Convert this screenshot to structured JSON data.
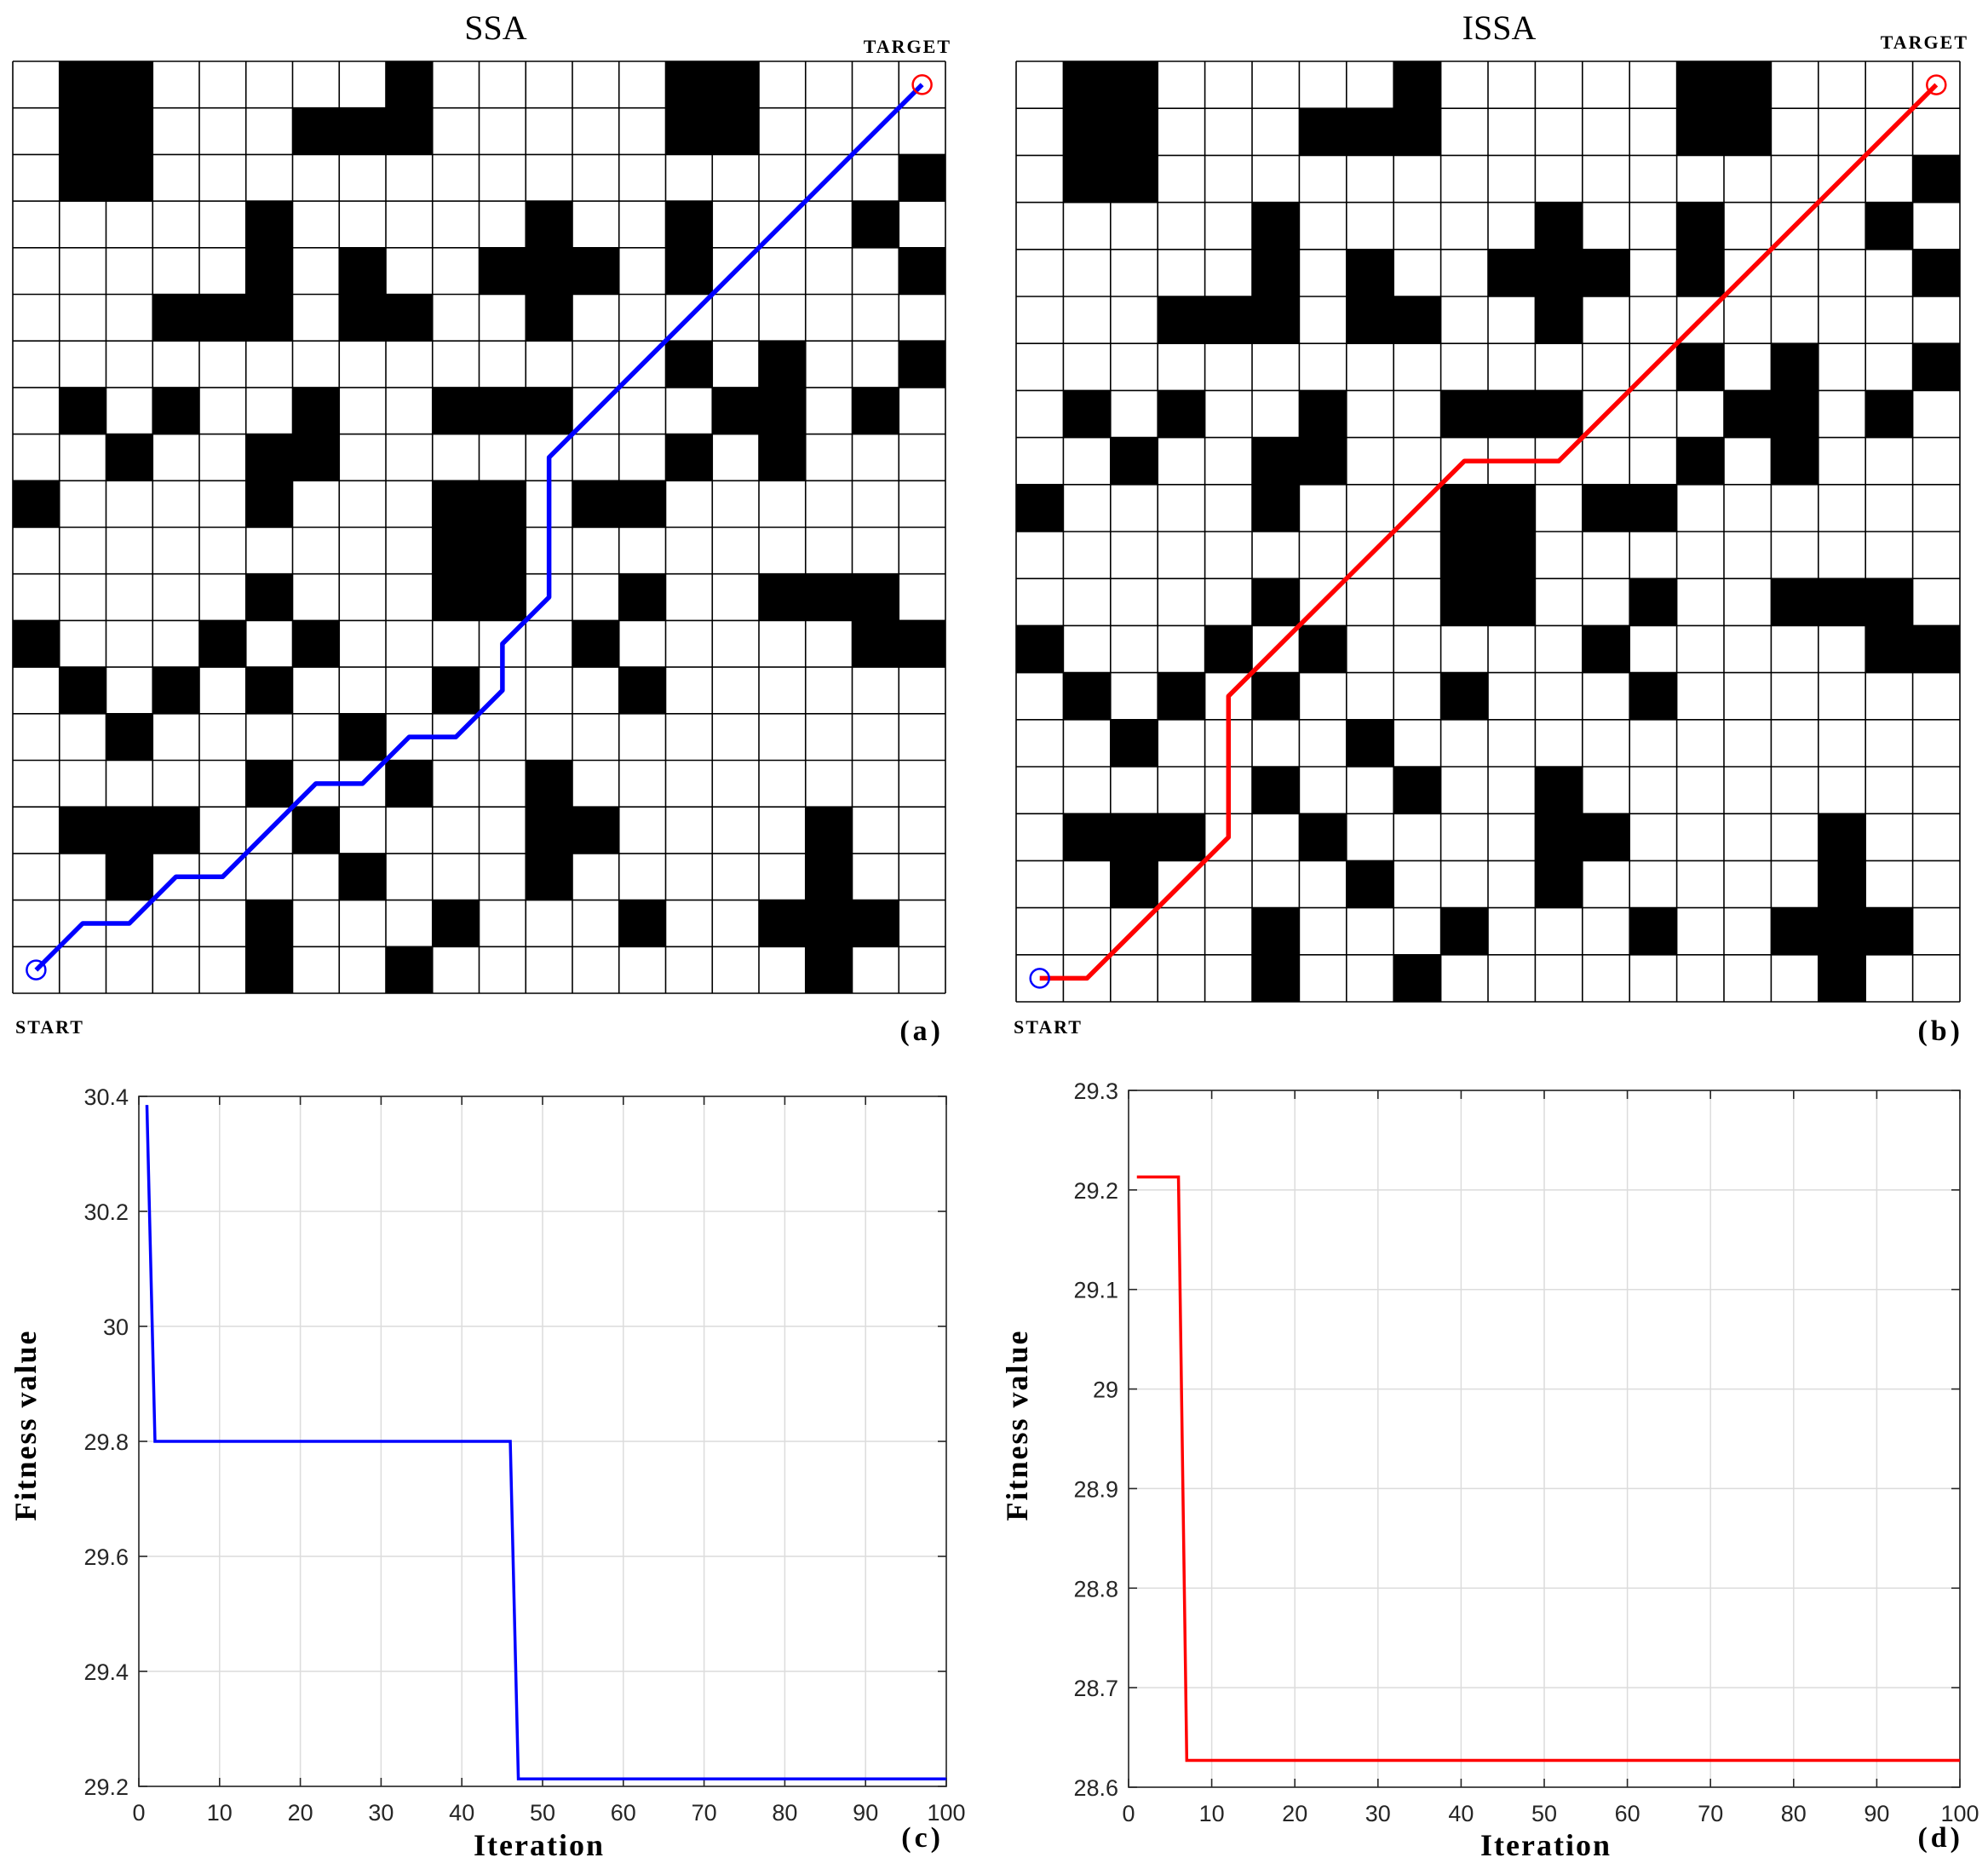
{
  "panels": [
    {
      "title": "SSA",
      "start_label": "START",
      "target_label": "TARGET",
      "panel_label": "(a)",
      "path_color": "#0000ff"
    },
    {
      "title": "ISSA",
      "start_label": "START",
      "target_label": "TARGET",
      "panel_label": "(b)",
      "path_color": "#ff0000"
    }
  ],
  "grid_map": {
    "rows": 20,
    "cols": 20,
    "obstacles_top_row_first": [
      [
        0,
        1,
        1,
        0,
        0,
        0,
        0,
        0,
        1,
        0,
        0,
        0,
        0,
        0,
        1,
        1,
        0,
        0,
        0,
        0
      ],
      [
        0,
        1,
        1,
        0,
        0,
        0,
        1,
        1,
        1,
        0,
        0,
        0,
        0,
        0,
        1,
        1,
        0,
        0,
        0,
        0
      ],
      [
        0,
        1,
        1,
        0,
        0,
        0,
        0,
        0,
        0,
        0,
        0,
        0,
        0,
        0,
        0,
        0,
        0,
        0,
        0,
        1
      ],
      [
        0,
        0,
        0,
        0,
        0,
        1,
        0,
        0,
        0,
        0,
        0,
        1,
        0,
        0,
        1,
        0,
        0,
        0,
        1,
        0
      ],
      [
        0,
        0,
        0,
        0,
        0,
        1,
        0,
        1,
        0,
        0,
        1,
        1,
        1,
        0,
        1,
        0,
        0,
        0,
        0,
        1
      ],
      [
        0,
        0,
        0,
        1,
        1,
        1,
        0,
        1,
        1,
        0,
        0,
        1,
        0,
        0,
        0,
        0,
        0,
        0,
        0,
        0
      ],
      [
        0,
        0,
        0,
        0,
        0,
        0,
        0,
        0,
        0,
        0,
        0,
        0,
        0,
        0,
        1,
        0,
        1,
        0,
        0,
        1
      ],
      [
        0,
        1,
        0,
        1,
        0,
        0,
        1,
        0,
        0,
        1,
        1,
        1,
        0,
        0,
        0,
        1,
        1,
        0,
        1,
        0
      ],
      [
        0,
        0,
        1,
        0,
        0,
        1,
        1,
        0,
        0,
        0,
        0,
        0,
        0,
        0,
        1,
        0,
        1,
        0,
        0,
        0
      ],
      [
        1,
        0,
        0,
        0,
        0,
        1,
        0,
        0,
        0,
        1,
        1,
        0,
        1,
        1,
        0,
        0,
        0,
        0,
        0,
        0
      ],
      [
        0,
        0,
        0,
        0,
        0,
        0,
        0,
        0,
        0,
        1,
        1,
        0,
        0,
        0,
        0,
        0,
        0,
        0,
        0,
        0
      ],
      [
        0,
        0,
        0,
        0,
        0,
        1,
        0,
        0,
        0,
        1,
        1,
        0,
        0,
        1,
        0,
        0,
        1,
        1,
        1,
        0
      ],
      [
        1,
        0,
        0,
        0,
        1,
        0,
        1,
        0,
        0,
        0,
        0,
        0,
        1,
        0,
        0,
        0,
        0,
        0,
        1,
        1
      ],
      [
        0,
        1,
        0,
        1,
        0,
        1,
        0,
        0,
        0,
        1,
        0,
        0,
        0,
        1,
        0,
        0,
        0,
        0,
        0,
        0
      ],
      [
        0,
        0,
        1,
        0,
        0,
        0,
        0,
        1,
        0,
        0,
        0,
        0,
        0,
        0,
        0,
        0,
        0,
        0,
        0,
        0
      ],
      [
        0,
        0,
        0,
        0,
        0,
        1,
        0,
        0,
        1,
        0,
        0,
        1,
        0,
        0,
        0,
        0,
        0,
        0,
        0,
        0
      ],
      [
        0,
        1,
        1,
        1,
        0,
        0,
        1,
        0,
        0,
        0,
        0,
        1,
        1,
        0,
        0,
        0,
        0,
        1,
        0,
        0
      ],
      [
        0,
        0,
        1,
        0,
        0,
        0,
        0,
        1,
        0,
        0,
        0,
        1,
        0,
        0,
        0,
        0,
        0,
        1,
        0,
        0
      ],
      [
        0,
        0,
        0,
        0,
        0,
        1,
        0,
        0,
        0,
        1,
        0,
        0,
        0,
        1,
        0,
        0,
        1,
        1,
        1,
        0
      ],
      [
        0,
        0,
        0,
        0,
        0,
        1,
        0,
        0,
        1,
        0,
        0,
        0,
        0,
        0,
        0,
        0,
        0,
        1,
        0,
        0
      ]
    ],
    "start_cell_center": [
      0.5,
      0.5
    ],
    "target_cell_center": [
      19.5,
      19.5
    ],
    "start_marker_color": "#0000ff",
    "target_marker_color": "#ff0000"
  },
  "paths": [
    [
      [
        0.5,
        0.5
      ],
      [
        1.5,
        1.5
      ],
      [
        2.5,
        1.5
      ],
      [
        3.5,
        2.5
      ],
      [
        4.5,
        2.5
      ],
      [
        6.5,
        4.5
      ],
      [
        7.5,
        4.5
      ],
      [
        8.5,
        5.5
      ],
      [
        9.5,
        5.5
      ],
      [
        10.5,
        6.5
      ],
      [
        10.5,
        7.5
      ],
      [
        11.5,
        8.5
      ],
      [
        11.5,
        11.5
      ],
      [
        19.5,
        19.5
      ]
    ],
    [
      [
        0.5,
        0.5
      ],
      [
        1.5,
        0.5
      ],
      [
        4.5,
        3.5
      ],
      [
        4.5,
        6.5
      ],
      [
        9.5,
        11.5
      ],
      [
        11.5,
        11.5
      ],
      [
        19.5,
        19.5
      ]
    ]
  ],
  "chart_data": [
    {
      "type": "line",
      "xlabel": "Iteration",
      "ylabel": "Fitness value",
      "panel_label": "(c)",
      "xlim": [
        0,
        100
      ],
      "ylim": [
        29.2,
        30.4
      ],
      "xticks": [
        0,
        10,
        20,
        30,
        40,
        50,
        60,
        70,
        80,
        90,
        100
      ],
      "yticks": [
        29.2,
        29.4,
        29.6,
        29.8,
        30.0,
        30.2,
        30.4
      ],
      "ytick_labels": [
        "29.2",
        "29.4",
        "29.6",
        "29.8",
        "30",
        "30.2",
        "30.4"
      ],
      "grid": true,
      "color": "#0000ff",
      "series": [
        {
          "x": [
            1,
            2,
            46,
            47,
            100
          ],
          "y": [
            30.385,
            29.8,
            29.8,
            29.213,
            29.213
          ]
        }
      ]
    },
    {
      "type": "line",
      "xlabel": "Iteration",
      "ylabel": "Fitness value",
      "panel_label": "(d)",
      "xlim": [
        0,
        100
      ],
      "ylim": [
        28.6,
        29.3
      ],
      "xticks": [
        0,
        10,
        20,
        30,
        40,
        50,
        60,
        70,
        80,
        90,
        100
      ],
      "yticks": [
        28.6,
        28.7,
        28.8,
        28.9,
        29.0,
        29.1,
        29.2,
        29.3
      ],
      "ytick_labels": [
        "28.6",
        "28.7",
        "28.8",
        "28.9",
        "29",
        "29.1",
        "29.2",
        "29.3"
      ],
      "grid": true,
      "color": "#ff0000",
      "series": [
        {
          "x": [
            1,
            6,
            7,
            100
          ],
          "y": [
            29.213,
            29.213,
            28.627,
            28.627
          ]
        }
      ]
    }
  ]
}
